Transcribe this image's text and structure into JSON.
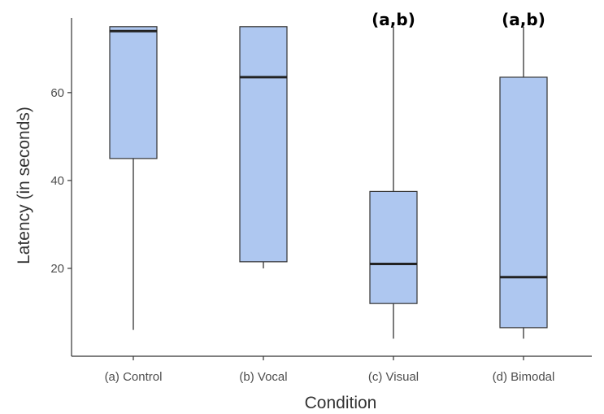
{
  "chart_data": {
    "type": "boxplot",
    "xlabel": "Condition",
    "ylabel": "Latency (in seconds)",
    "ylim": [
      0,
      77
    ],
    "yticks": [
      20,
      40,
      60
    ],
    "grid": false,
    "box_color": "#aec7f0",
    "line_color": "#333333",
    "categories": [
      "(a) Control",
      "(b) Vocal",
      "(c) Visual",
      "(d) Bimodal"
    ],
    "boxes": [
      {
        "category": "(a) Control",
        "min": 6,
        "q1": 45,
        "median": 74,
        "q3": 75,
        "max": 75,
        "annotation": ""
      },
      {
        "category": "(b) Vocal",
        "min": 20,
        "q1": 21.5,
        "median": 63.5,
        "q3": 75,
        "max": 75,
        "annotation": ""
      },
      {
        "category": "(c) Visual",
        "min": 4,
        "q1": 12,
        "median": 21,
        "q3": 37.5,
        "max": 75,
        "annotation": "(a,b)"
      },
      {
        "category": "(d) Bimodal",
        "min": 4,
        "q1": 6.5,
        "median": 18,
        "q3": 63.5,
        "max": 75,
        "annotation": "(a,b)"
      }
    ]
  }
}
